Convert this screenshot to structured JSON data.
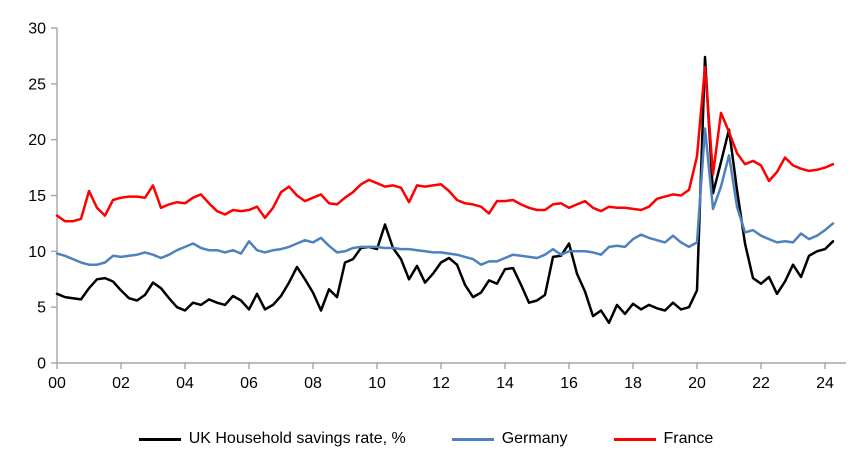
{
  "chart_data": {
    "type": "line",
    "title": "",
    "xlabel": "",
    "ylabel": "",
    "grid": false,
    "legend_position": "bottom",
    "ylim": [
      0,
      30
    ],
    "xlim": [
      2000,
      2024.7
    ],
    "x_start": 2000,
    "x_step_years": 0.25,
    "frequency": "quarterly",
    "y_ticks": [
      {
        "value": 0,
        "label": "0"
      },
      {
        "value": 5,
        "label": "5"
      },
      {
        "value": 10,
        "label": "10"
      },
      {
        "value": 15,
        "label": "15"
      },
      {
        "value": 20,
        "label": "20"
      },
      {
        "value": 25,
        "label": "25"
      },
      {
        "value": 30,
        "label": "30"
      }
    ],
    "x_ticks": [
      {
        "value": 2000,
        "label": "00"
      },
      {
        "value": 2002,
        "label": "02"
      },
      {
        "value": 2004,
        "label": "04"
      },
      {
        "value": 2006,
        "label": "06"
      },
      {
        "value": 2008,
        "label": "08"
      },
      {
        "value": 2010,
        "label": "10"
      },
      {
        "value": 2012,
        "label": "12"
      },
      {
        "value": 2014,
        "label": "14"
      },
      {
        "value": 2016,
        "label": "16"
      },
      {
        "value": 2018,
        "label": "18"
      },
      {
        "value": 2020,
        "label": "20"
      },
      {
        "value": 2022,
        "label": "22"
      },
      {
        "value": 2024,
        "label": "24"
      }
    ],
    "axis_color": "#a6a6a6",
    "tick_label_color": "#000000",
    "series": [
      {
        "name": "UK Household savings rate, %",
        "color": "#000000",
        "line_width": 2.5,
        "values": [
          6.2,
          5.9,
          5.8,
          5.7,
          6.7,
          7.5,
          7.6,
          7.3,
          6.5,
          5.8,
          5.6,
          6.1,
          7.2,
          6.7,
          5.8,
          5.0,
          4.7,
          5.4,
          5.2,
          5.7,
          5.4,
          5.2,
          6.0,
          5.6,
          4.8,
          6.2,
          4.8,
          5.2,
          6.0,
          7.2,
          8.6,
          7.5,
          6.3,
          4.7,
          6.6,
          5.9,
          9.0,
          9.3,
          10.3,
          10.4,
          10.2,
          12.4,
          10.3,
          9.3,
          7.5,
          8.7,
          7.2,
          8.0,
          9.0,
          9.4,
          8.8,
          7.0,
          5.9,
          6.3,
          7.4,
          7.1,
          8.4,
          8.5,
          7.0,
          5.4,
          5.6,
          6.1,
          9.5,
          9.6,
          10.7,
          8.0,
          6.4,
          4.2,
          4.7,
          3.6,
          5.2,
          4.4,
          5.3,
          4.8,
          5.2,
          4.9,
          4.7,
          5.4,
          4.8,
          5.0,
          6.5,
          27.4,
          15.2,
          18.0,
          20.9,
          15.5,
          10.7,
          7.6,
          7.1,
          7.7,
          6.2,
          7.3,
          8.8,
          7.7,
          9.6,
          10.0,
          10.2,
          10.9
        ]
      },
      {
        "name": "Germany",
        "color": "#4f81bd",
        "line_width": 2.5,
        "values": [
          9.8,
          9.6,
          9.3,
          9.0,
          8.8,
          8.8,
          9.0,
          9.6,
          9.5,
          9.6,
          9.7,
          9.9,
          9.7,
          9.4,
          9.7,
          10.1,
          10.4,
          10.7,
          10.3,
          10.1,
          10.1,
          9.9,
          10.1,
          9.8,
          10.9,
          10.1,
          9.9,
          10.1,
          10.2,
          10.4,
          10.7,
          11.0,
          10.8,
          11.2,
          10.5,
          9.9,
          10.0,
          10.3,
          10.4,
          10.4,
          10.4,
          10.3,
          10.3,
          10.2,
          10.2,
          10.1,
          10.0,
          9.9,
          9.9,
          9.8,
          9.7,
          9.5,
          9.3,
          8.8,
          9.1,
          9.1,
          9.4,
          9.7,
          9.6,
          9.5,
          9.4,
          9.7,
          10.2,
          9.7,
          10.0,
          10.0,
          10.0,
          9.9,
          9.7,
          10.4,
          10.5,
          10.4,
          11.1,
          11.5,
          11.2,
          11.0,
          10.8,
          11.4,
          10.8,
          10.4,
          10.8,
          21.0,
          13.8,
          15.8,
          18.6,
          14.0,
          11.7,
          11.9,
          11.4,
          11.1,
          10.8,
          10.9,
          10.8,
          11.6,
          11.1,
          11.4,
          11.9,
          12.5
        ]
      },
      {
        "name": "France",
        "color": "#ff0000",
        "line_width": 2.5,
        "values": [
          13.2,
          12.7,
          12.7,
          12.9,
          15.4,
          13.9,
          13.2,
          14.6,
          14.8,
          14.9,
          14.9,
          14.8,
          15.9,
          13.9,
          14.2,
          14.4,
          14.3,
          14.8,
          15.1,
          14.3,
          13.6,
          13.3,
          13.7,
          13.6,
          13.7,
          14.0,
          13.0,
          13.9,
          15.3,
          15.8,
          15.0,
          14.5,
          14.8,
          15.1,
          14.3,
          14.2,
          14.8,
          15.3,
          16.0,
          16.4,
          16.1,
          15.8,
          15.9,
          15.7,
          14.4,
          15.9,
          15.8,
          15.9,
          16.0,
          15.4,
          14.6,
          14.3,
          14.2,
          14.0,
          13.4,
          14.5,
          14.5,
          14.6,
          14.2,
          13.9,
          13.7,
          13.7,
          14.2,
          14.3,
          13.9,
          14.2,
          14.5,
          13.9,
          13.6,
          14.0,
          13.9,
          13.9,
          13.8,
          13.7,
          14.0,
          14.7,
          14.9,
          15.1,
          15.0,
          15.5,
          18.5,
          26.5,
          16.9,
          22.4,
          20.7,
          18.8,
          17.8,
          18.1,
          17.7,
          16.3,
          17.1,
          18.4,
          17.7,
          17.4,
          17.2,
          17.3,
          17.5,
          17.8
        ]
      }
    ]
  },
  "legend": {
    "items": [
      {
        "label": "UK Household savings rate, %"
      },
      {
        "label": "Germany"
      },
      {
        "label": "France"
      }
    ]
  }
}
